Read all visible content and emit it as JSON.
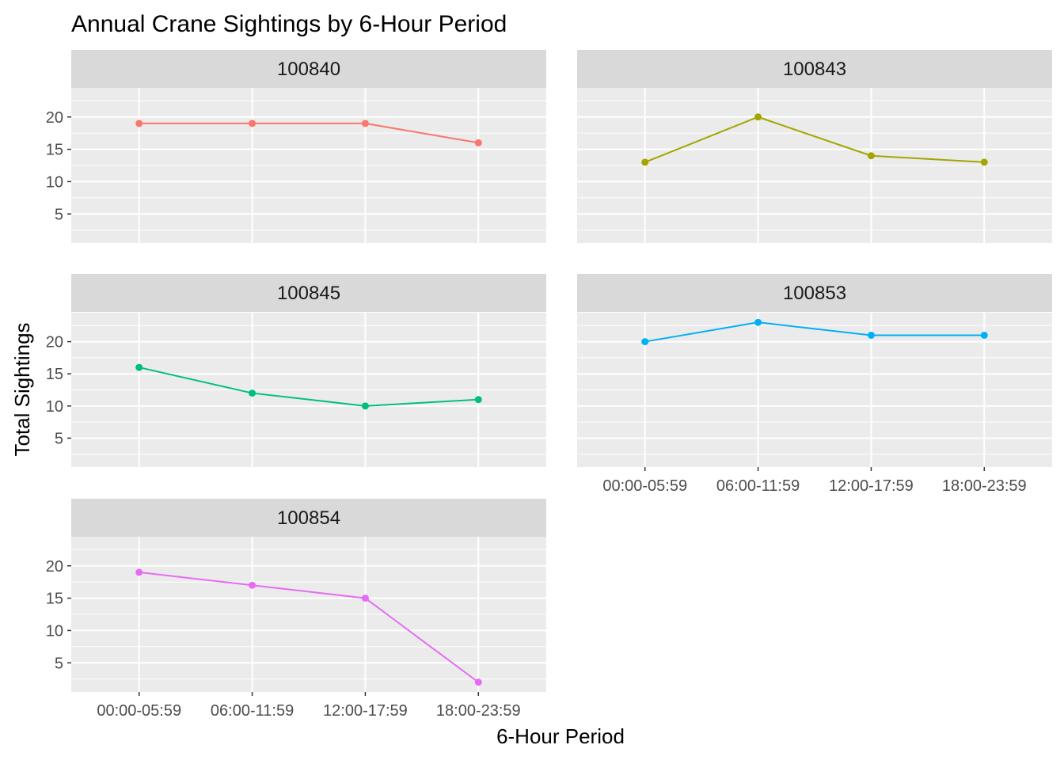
{
  "chart_data": {
    "type": "line",
    "title": "Annual Crane Sightings by 6-Hour Period",
    "xlabel": "6-Hour Period",
    "ylabel": "Total Sightings",
    "categories": [
      "00:00-05:59",
      "06:00-11:59",
      "12:00-17:59",
      "18:00-23:59"
    ],
    "ylim": [
      0.5,
      24.5
    ],
    "yticks": [
      5,
      10,
      15,
      20
    ],
    "grid": true,
    "legend": "none",
    "facets": [
      {
        "name": "100840",
        "color": "#F8766D",
        "values": [
          19,
          19,
          19,
          16
        ]
      },
      {
        "name": "100843",
        "color": "#A3A500",
        "values": [
          13,
          20,
          14,
          13
        ]
      },
      {
        "name": "100845",
        "color": "#00BF7D",
        "values": [
          16,
          12,
          10,
          11
        ]
      },
      {
        "name": "100853",
        "color": "#00B0F6",
        "values": [
          20,
          23,
          21,
          21
        ]
      },
      {
        "name": "100854",
        "color": "#E76BF3",
        "values": [
          19,
          17,
          15,
          2
        ]
      }
    ]
  }
}
